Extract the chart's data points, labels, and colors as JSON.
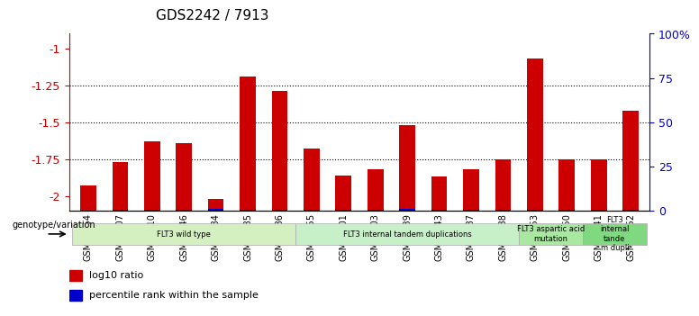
{
  "title": "GDS2242 / 7913",
  "samples": [
    "GSM48254",
    "GSM48507",
    "GSM48510",
    "GSM48546",
    "GSM48584",
    "GSM48585",
    "GSM48586",
    "GSM48255",
    "GSM48501",
    "GSM48503",
    "GSM48539",
    "GSM48543",
    "GSM48587",
    "GSM48588",
    "GSM48253",
    "GSM48350",
    "GSM48541",
    "GSM48252"
  ],
  "log10_ratio": [
    -1.93,
    -1.77,
    -1.63,
    -1.64,
    -2.02,
    -1.19,
    -1.29,
    -1.68,
    -1.86,
    -1.82,
    -1.52,
    -1.87,
    -1.82,
    -1.75,
    -1.07,
    -1.75,
    -1.75,
    -1.42
  ],
  "percentile_rank": [
    2,
    3,
    6,
    5,
    8,
    4,
    5,
    3,
    6,
    5,
    10,
    4,
    5,
    3,
    3,
    4,
    3,
    4
  ],
  "bar_color": "#cc0000",
  "blue_color": "#0000cc",
  "left_yticks": [
    -2.0,
    -1.75,
    -1.5,
    -1.25,
    -1.0
  ],
  "left_yticklabels": [
    "-2",
    "-1.75",
    "-1.5",
    "-1.25",
    "-1"
  ],
  "right_yticks": [
    0,
    25,
    50,
    75,
    100
  ],
  "right_yticklabels": [
    "0",
    "25",
    "50",
    "75",
    "100%"
  ],
  "ylim_left": [
    -2.1,
    -0.9
  ],
  "grid_lines": [
    -1.75,
    -1.5,
    -1.25
  ],
  "groups": [
    {
      "label": "FLT3 wild type",
      "start": 0,
      "end": 7,
      "color": "#d4f0c0"
    },
    {
      "label": "FLT3 internal tandem duplications",
      "start": 7,
      "end": 14,
      "color": "#c8f0c8"
    },
    {
      "label": "FLT3 aspartic acid\nmutation",
      "start": 14,
      "end": 16,
      "color": "#a8e8a0"
    },
    {
      "label": "FLT3\ninternal\ntande\nm dupli",
      "start": 16,
      "end": 18,
      "color": "#80d880"
    }
  ],
  "legend_red": "log10 ratio",
  "legend_blue": "percentile rank within the sample",
  "genotype_label": "genotype/variation",
  "background_color": "#ffffff",
  "tick_color_left": "#cc0000",
  "tick_color_right": "#0000cc"
}
